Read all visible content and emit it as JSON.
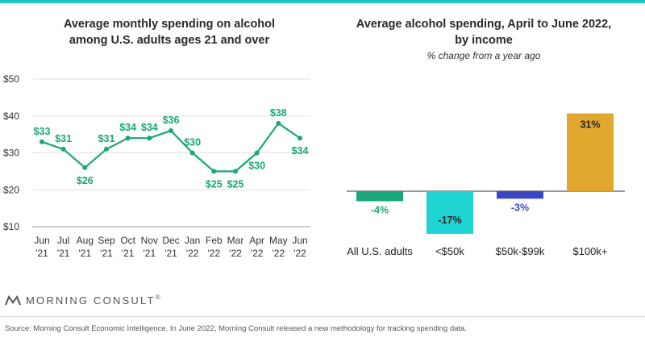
{
  "brand": {
    "name": "MORNING CONSULT",
    "mark": "®"
  },
  "source": "Source: Morning Consult Economic Intelligence. In June 2022, Morning Consult released a new methodology for tracking spending data.",
  "chart_data": [
    {
      "type": "line",
      "title_line1": "Average monthly spending on alcohol",
      "title_line2": "among U.S. adults ages 21 and over",
      "x": [
        "Jun '21",
        "Jul '21",
        "Aug '21",
        "Sep '21",
        "Oct '21",
        "Nov '21",
        "Dec '21",
        "Jan '22",
        "Feb '22",
        "Mar '22",
        "Apr '22",
        "May '22",
        "Jun '22"
      ],
      "x_tick_line1": [
        "Jun",
        "Jul",
        "Aug",
        "Sep",
        "Oct",
        "Nov",
        "Dec",
        "Jan",
        "Feb",
        "Mar",
        "Apr",
        "May",
        "Jun"
      ],
      "x_tick_line2": [
        "'21",
        "'21",
        "'21",
        "'21",
        "'21",
        "'21",
        "'21",
        "'22",
        "'22",
        "'22",
        "'22",
        "'22",
        "'22"
      ],
      "values": [
        33,
        31,
        26,
        31,
        34,
        34,
        36,
        30,
        25,
        25,
        30,
        38,
        34
      ],
      "data_labels": [
        "$33",
        "$31",
        "$26",
        "$31",
        "$34",
        "$34",
        "$36",
        "$30",
        "$25",
        "$25",
        "$30",
        "$38",
        "$34"
      ],
      "y_ticks": [
        10,
        20,
        30,
        40,
        50
      ],
      "y_tick_labels": [
        "$10",
        "$20",
        "$30",
        "$40",
        "$50"
      ],
      "ylim": [
        10,
        50
      ],
      "grid": true,
      "color": "#1aa67a"
    },
    {
      "type": "bar",
      "title_line1": "Average alcohol spending, April to June 2022,",
      "title_line2": "by income",
      "subtitle": "% change from a year ago",
      "categories": [
        "All U.S. adults",
        "<$50k",
        "$50k-$99k",
        "$100k+"
      ],
      "values": [
        -4,
        -17,
        -3,
        31
      ],
      "data_labels": [
        "-4%",
        "-17%",
        "-3%",
        "31%"
      ],
      "colors": [
        "#1aa67a",
        "#1fd3d3",
        "#3d46c2",
        "#e2a72e"
      ],
      "label_colors": [
        "#1aa67a",
        "#222222",
        "#3d46c2",
        "#222222"
      ]
    }
  ]
}
